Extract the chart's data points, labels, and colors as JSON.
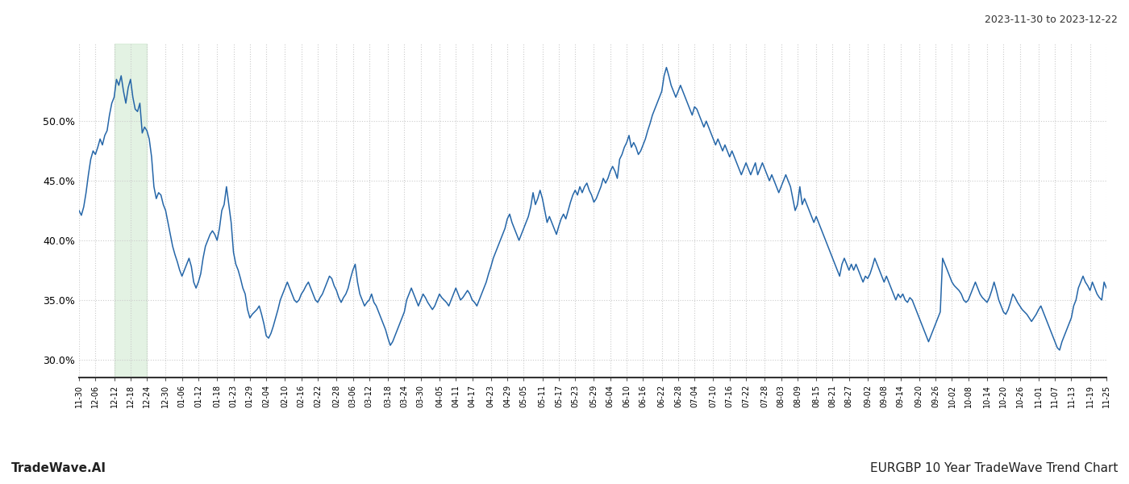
{
  "title_right": "2023-11-30 to 2023-12-22",
  "footer_left": "TradeWave.AI",
  "footer_right": "EURGBP 10 Year TradeWave Trend Chart",
  "line_color": "#2566a8",
  "highlight_color": "#c8e6c9",
  "highlight_alpha": 0.5,
  "background_color": "#ffffff",
  "grid_color": "#cccccc",
  "ylim": [
    28.5,
    56.5
  ],
  "yticks": [
    30.0,
    35.0,
    40.0,
    45.0,
    50.0
  ],
  "x_labels": [
    "11-30",
    "12-06",
    "12-12",
    "12-18",
    "12-24",
    "12-30",
    "01-06",
    "01-12",
    "01-18",
    "01-23",
    "01-29",
    "02-04",
    "02-10",
    "02-16",
    "02-22",
    "02-28",
    "03-06",
    "03-12",
    "03-18",
    "03-24",
    "03-30",
    "04-05",
    "04-11",
    "04-17",
    "04-23",
    "04-29",
    "05-05",
    "05-11",
    "05-17",
    "05-23",
    "05-29",
    "06-04",
    "06-10",
    "06-16",
    "06-22",
    "06-28",
    "07-04",
    "07-10",
    "07-16",
    "07-22",
    "07-28",
    "08-03",
    "08-09",
    "08-15",
    "08-21",
    "08-27",
    "09-02",
    "09-08",
    "09-14",
    "09-20",
    "09-26",
    "10-02",
    "10-08",
    "10-14",
    "10-20",
    "10-26",
    "11-01",
    "11-07",
    "11-13",
    "11-19",
    "11-25"
  ],
  "highlight_label_start": "12-12",
  "highlight_label_end": "12-24",
  "values": [
    42.5,
    42.1,
    42.8,
    44.0,
    45.5,
    46.8,
    47.5,
    47.2,
    47.8,
    48.5,
    48.0,
    48.8,
    49.2,
    50.5,
    51.5,
    52.0,
    53.5,
    53.0,
    53.8,
    52.5,
    51.5,
    52.8,
    53.5,
    52.0,
    51.0,
    50.8,
    51.5,
    49.0,
    49.5,
    49.2,
    48.5,
    47.0,
    44.5,
    43.5,
    44.0,
    43.8,
    43.0,
    42.5,
    41.5,
    40.5,
    39.5,
    38.8,
    38.2,
    37.5,
    37.0,
    37.5,
    38.0,
    38.5,
    37.8,
    36.5,
    36.0,
    36.5,
    37.2,
    38.5,
    39.5,
    40.0,
    40.5,
    40.8,
    40.5,
    40.0,
    41.0,
    42.5,
    43.0,
    44.5,
    43.0,
    41.5,
    39.0,
    38.0,
    37.5,
    36.8,
    36.0,
    35.5,
    34.2,
    33.5,
    33.8,
    34.0,
    34.2,
    34.5,
    33.8,
    33.0,
    32.0,
    31.8,
    32.2,
    32.8,
    33.5,
    34.2,
    35.0,
    35.5,
    36.0,
    36.5,
    36.0,
    35.5,
    35.0,
    34.8,
    35.0,
    35.5,
    35.8,
    36.2,
    36.5,
    36.0,
    35.5,
    35.0,
    34.8,
    35.2,
    35.5,
    36.0,
    36.5,
    37.0,
    36.8,
    36.2,
    35.8,
    35.2,
    34.8,
    35.2,
    35.5,
    36.0,
    36.8,
    37.5,
    38.0,
    36.5,
    35.5,
    35.0,
    34.5,
    34.8,
    35.0,
    35.5,
    34.8,
    34.5,
    34.0,
    33.5,
    33.0,
    32.5,
    31.8,
    31.2,
    31.5,
    32.0,
    32.5,
    33.0,
    33.5,
    34.0,
    35.0,
    35.5,
    36.0,
    35.5,
    35.0,
    34.5,
    35.0,
    35.5,
    35.2,
    34.8,
    34.5,
    34.2,
    34.5,
    35.0,
    35.5,
    35.2,
    35.0,
    34.8,
    34.5,
    35.0,
    35.5,
    36.0,
    35.5,
    35.0,
    35.2,
    35.5,
    35.8,
    35.5,
    35.0,
    34.8,
    34.5,
    35.0,
    35.5,
    36.0,
    36.5,
    37.2,
    37.8,
    38.5,
    39.0,
    39.5,
    40.0,
    40.5,
    41.0,
    41.8,
    42.2,
    41.5,
    41.0,
    40.5,
    40.0,
    40.5,
    41.0,
    41.5,
    42.0,
    42.8,
    44.0,
    43.0,
    43.5,
    44.2,
    43.5,
    42.5,
    41.5,
    42.0,
    41.5,
    41.0,
    40.5,
    41.2,
    41.8,
    42.2,
    41.8,
    42.5,
    43.2,
    43.8,
    44.2,
    43.8,
    44.5,
    44.0,
    44.5,
    44.8,
    44.2,
    43.8,
    43.2,
    43.5,
    44.0,
    44.5,
    45.2,
    44.8,
    45.2,
    45.8,
    46.2,
    45.8,
    45.2,
    46.8,
    47.2,
    47.8,
    48.2,
    48.8,
    47.8,
    48.2,
    47.8,
    47.2,
    47.5,
    48.0,
    48.5,
    49.2,
    49.8,
    50.5,
    51.0,
    51.5,
    52.0,
    52.5,
    53.8,
    54.5,
    53.8,
    53.0,
    52.5,
    52.0,
    52.5,
    53.0,
    52.5,
    52.0,
    51.5,
    51.0,
    50.5,
    51.2,
    51.0,
    50.5,
    50.0,
    49.5,
    50.0,
    49.5,
    49.0,
    48.5,
    48.0,
    48.5,
    48.0,
    47.5,
    48.0,
    47.5,
    47.0,
    47.5,
    47.0,
    46.5,
    46.0,
    45.5,
    46.0,
    46.5,
    46.0,
    45.5,
    46.0,
    46.5,
    45.5,
    46.0,
    46.5,
    46.0,
    45.5,
    45.0,
    45.5,
    45.0,
    44.5,
    44.0,
    44.5,
    45.0,
    45.5,
    45.0,
    44.5,
    43.5,
    42.5,
    43.0,
    44.5,
    43.0,
    43.5,
    43.0,
    42.5,
    42.0,
    41.5,
    42.0,
    41.5,
    41.0,
    40.5,
    40.0,
    39.5,
    39.0,
    38.5,
    38.0,
    37.5,
    37.0,
    38.0,
    38.5,
    38.0,
    37.5,
    38.0,
    37.5,
    38.0,
    37.5,
    37.0,
    36.5,
    37.0,
    36.8,
    37.2,
    37.8,
    38.5,
    38.0,
    37.5,
    37.0,
    36.5,
    37.0,
    36.5,
    36.0,
    35.5,
    35.0,
    35.5,
    35.2,
    35.5,
    35.0,
    34.8,
    35.2,
    35.0,
    34.5,
    34.0,
    33.5,
    33.0,
    32.5,
    32.0,
    31.5,
    32.0,
    32.5,
    33.0,
    33.5,
    34.0,
    38.5,
    38.0,
    37.5,
    37.0,
    36.5,
    36.2,
    36.0,
    35.8,
    35.5,
    35.0,
    34.8,
    35.0,
    35.5,
    36.0,
    36.5,
    36.0,
    35.5,
    35.2,
    35.0,
    34.8,
    35.2,
    35.8,
    36.5,
    35.8,
    35.0,
    34.5,
    34.0,
    33.8,
    34.2,
    34.8,
    35.5,
    35.2,
    34.8,
    34.5,
    34.2,
    34.0,
    33.8,
    33.5,
    33.2,
    33.5,
    33.8,
    34.2,
    34.5,
    34.0,
    33.5,
    33.0,
    32.5,
    32.0,
    31.5,
    31.0,
    30.8,
    31.5,
    32.0,
    32.5,
    33.0,
    33.5,
    34.5,
    35.0,
    36.0,
    36.5,
    37.0,
    36.5,
    36.2,
    35.8,
    36.5,
    36.0,
    35.5,
    35.2,
    35.0,
    36.5,
    36.0
  ]
}
